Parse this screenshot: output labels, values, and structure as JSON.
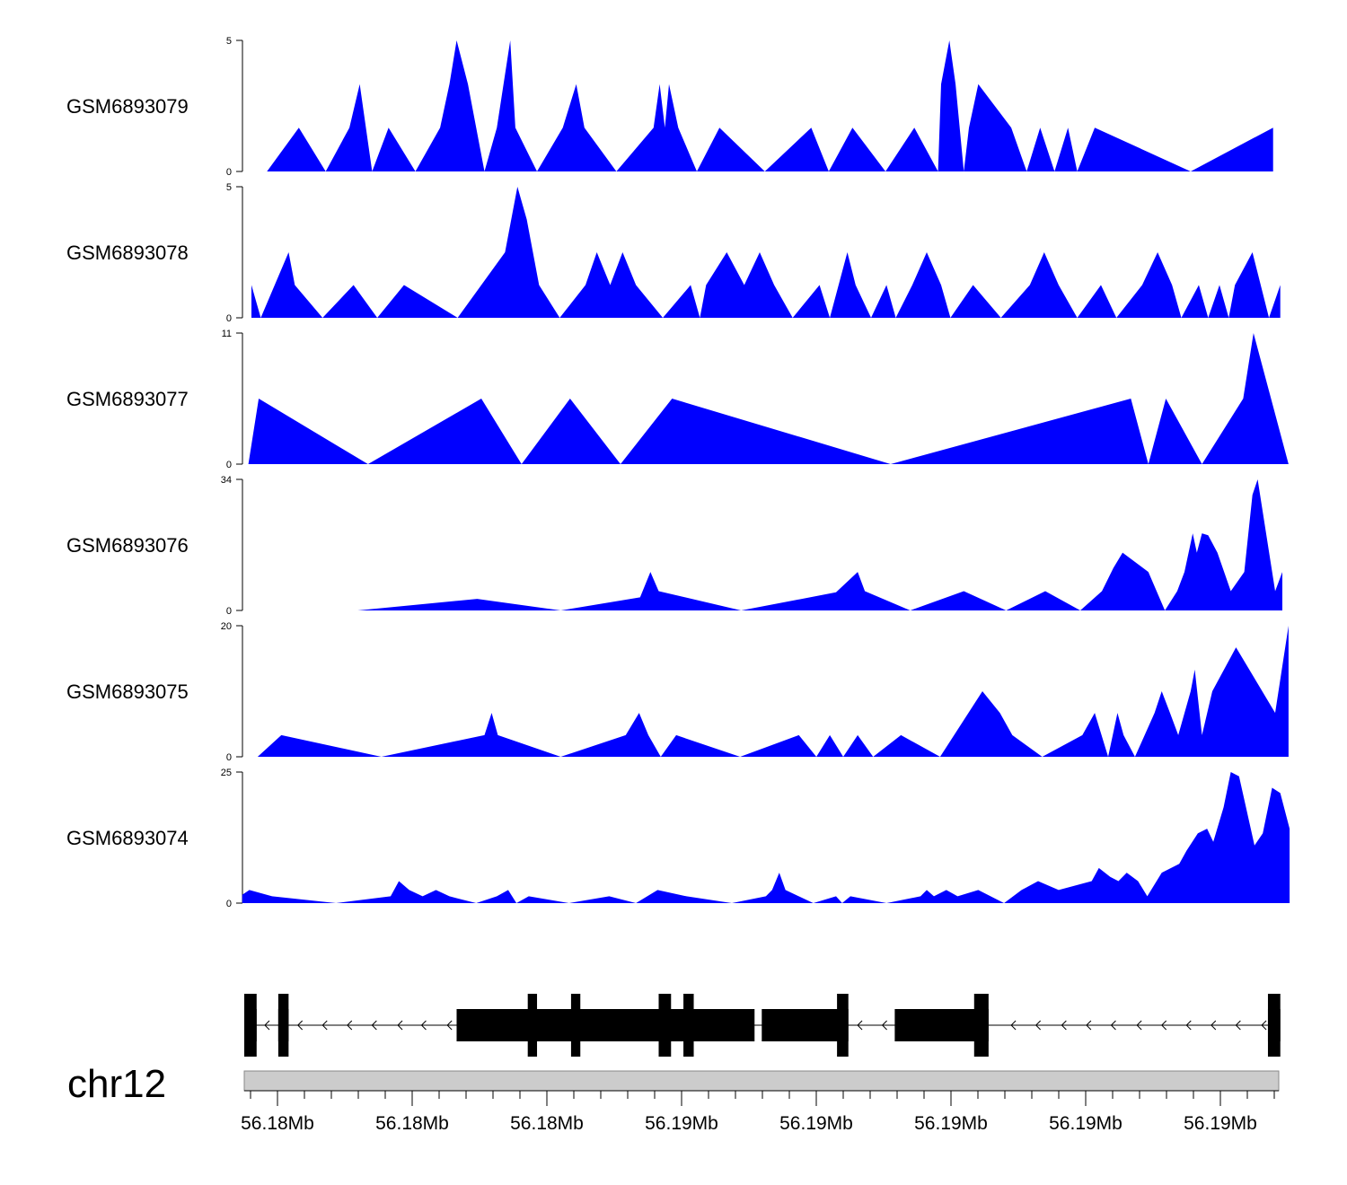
{
  "chart_data": {
    "type": "area",
    "title": "",
    "region": {
      "chromosome": "chr12",
      "coord_labels": [
        "56.18Mb",
        "56.18Mb",
        "56.18Mb",
        "56.19Mb",
        "56.19Mb",
        "56.19Mb",
        "56.19Mb",
        "56.19Mb"
      ]
    },
    "fill_color": "#0000ff",
    "gene_color": "#000000",
    "ideogram_color": "#cccccc",
    "x_range": [
      0,
      1000
    ],
    "tracks": [
      {
        "name": "GSM6893079",
        "ylim": [
          0,
          5
        ],
        "y_ticks": [
          "5",
          "0"
        ],
        "points": [
          [
            22,
            0
          ],
          [
            53,
            1.67
          ],
          [
            79,
            0
          ],
          [
            102,
            1.67
          ],
          [
            112,
            3.33
          ],
          [
            124,
            0
          ],
          [
            140,
            1.67
          ],
          [
            166,
            0
          ],
          [
            190,
            1.67
          ],
          [
            199,
            3.33
          ],
          [
            206,
            5
          ],
          [
            217,
            3.33
          ],
          [
            233,
            0
          ],
          [
            245,
            1.67
          ],
          [
            258,
            5
          ],
          [
            263,
            1.67
          ],
          [
            284,
            0
          ],
          [
            309,
            1.67
          ],
          [
            322,
            3.33
          ],
          [
            330,
            1.67
          ],
          [
            361,
            0
          ],
          [
            397,
            1.67
          ],
          [
            403,
            3.33
          ],
          [
            408,
            1.67
          ],
          [
            412,
            3.33
          ],
          [
            421,
            1.67
          ],
          [
            439,
            0
          ],
          [
            461,
            1.67
          ],
          [
            505,
            0
          ],
          [
            550,
            1.67
          ],
          [
            567,
            0
          ],
          [
            590,
            1.67
          ],
          [
            622,
            0
          ],
          [
            650,
            1.67
          ],
          [
            673,
            0
          ],
          [
            676,
            3.33
          ],
          [
            684,
            5
          ],
          [
            690,
            3.33
          ],
          [
            698,
            0
          ],
          [
            703,
            1.67
          ],
          [
            712,
            3.33
          ],
          [
            744,
            1.67
          ],
          [
            759,
            0
          ],
          [
            772,
            1.67
          ],
          [
            786,
            0
          ],
          [
            799,
            1.67
          ],
          [
            808,
            0
          ],
          [
            825,
            1.67
          ],
          [
            918,
            0
          ],
          [
            998,
            1.67
          ],
          [
            998,
            0
          ]
        ]
      },
      {
        "name": "GSM6893078",
        "ylim": [
          0,
          5
        ],
        "y_ticks": [
          "5",
          "0"
        ],
        "points": [
          [
            7,
            0
          ],
          [
            7,
            1.25
          ],
          [
            16,
            0
          ],
          [
            43,
            2.5
          ],
          [
            49,
            1.25
          ],
          [
            76,
            0
          ],
          [
            106,
            1.25
          ],
          [
            129,
            0
          ],
          [
            155,
            1.25
          ],
          [
            207,
            0
          ],
          [
            253,
            2.5
          ],
          [
            265,
            5
          ],
          [
            274,
            3.75
          ],
          [
            286,
            1.25
          ],
          [
            306,
            0
          ],
          [
            331,
            1.25
          ],
          [
            342,
            2.5
          ],
          [
            355,
            1.25
          ],
          [
            367,
            2.5
          ],
          [
            380,
            1.25
          ],
          [
            406,
            0
          ],
          [
            433,
            1.25
          ],
          [
            442,
            0
          ],
          [
            448,
            1.25
          ],
          [
            468,
            2.5
          ],
          [
            485,
            1.25
          ],
          [
            500,
            2.5
          ],
          [
            514,
            1.25
          ],
          [
            532,
            0
          ],
          [
            558,
            1.25
          ],
          [
            568,
            0
          ],
          [
            585,
            2.5
          ],
          [
            593,
            1.25
          ],
          [
            608,
            0
          ],
          [
            623,
            1.25
          ],
          [
            632,
            0
          ],
          [
            648,
            1.25
          ],
          [
            662,
            2.5
          ],
          [
            676,
            1.25
          ],
          [
            685,
            0
          ],
          [
            707,
            1.25
          ],
          [
            734,
            0
          ],
          [
            762,
            1.25
          ],
          [
            776,
            2.5
          ],
          [
            790,
            1.25
          ],
          [
            808,
            0
          ],
          [
            831,
            1.25
          ],
          [
            846,
            0
          ],
          [
            871,
            1.25
          ],
          [
            886,
            2.5
          ],
          [
            900,
            1.25
          ],
          [
            909,
            0
          ],
          [
            926,
            1.25
          ],
          [
            935,
            0
          ],
          [
            946,
            1.25
          ],
          [
            955,
            0
          ],
          [
            961,
            1.25
          ],
          [
            978,
            2.5
          ],
          [
            994,
            0
          ],
          [
            1005,
            1.25
          ],
          [
            1005,
            0
          ]
        ]
      },
      {
        "name": "GSM6893077",
        "ylim": [
          0,
          11
        ],
        "y_ticks": [
          "11",
          "0"
        ],
        "points": [
          [
            4,
            0
          ],
          [
            14,
            5.5
          ],
          [
            120,
            0
          ],
          [
            230,
            5.5
          ],
          [
            269,
            0
          ],
          [
            316,
            5.5
          ],
          [
            365,
            0
          ],
          [
            415,
            5.5
          ],
          [
            627,
            0
          ],
          [
            860,
            5.5
          ],
          [
            877,
            0
          ],
          [
            894,
            5.5
          ],
          [
            929,
            0
          ],
          [
            969,
            5.5
          ],
          [
            979,
            11
          ],
          [
            1013,
            0
          ]
        ]
      },
      {
        "name": "GSM6893076",
        "ylim": [
          0,
          34
        ],
        "y_ticks": [
          "34",
          "0"
        ],
        "points": [
          [
            110,
            0
          ],
          [
            226,
            3
          ],
          [
            307,
            0
          ],
          [
            384,
            3.4
          ],
          [
            394,
            10
          ],
          [
            402,
            5
          ],
          [
            482,
            0
          ],
          [
            574,
            4.7
          ],
          [
            595,
            10
          ],
          [
            602,
            5
          ],
          [
            646,
            0
          ],
          [
            698,
            5
          ],
          [
            739,
            0
          ],
          [
            777,
            5
          ],
          [
            811,
            0
          ],
          [
            832,
            5
          ],
          [
            843,
            11
          ],
          [
            852,
            15
          ],
          [
            877,
            10
          ],
          [
            893,
            0
          ],
          [
            905,
            5
          ],
          [
            912,
            10
          ],
          [
            920,
            20
          ],
          [
            924,
            15
          ],
          [
            929,
            20
          ],
          [
            935,
            19.5
          ],
          [
            944,
            15
          ],
          [
            957,
            5
          ],
          [
            970,
            10
          ],
          [
            978,
            30
          ],
          [
            983,
            34
          ],
          [
            1000,
            5
          ],
          [
            1007,
            10
          ],
          [
            1007,
            0
          ]
        ]
      },
      {
        "name": "GSM6893075",
        "ylim": [
          0,
          20
        ],
        "y_ticks": [
          "20",
          "0"
        ],
        "points": [
          [
            13,
            0
          ],
          [
            36,
            3.3
          ],
          [
            133,
            0
          ],
          [
            233,
            3.3
          ],
          [
            240,
            6.7
          ],
          [
            246,
            3.3
          ],
          [
            307,
            0
          ],
          [
            370,
            3.3
          ],
          [
            383,
            6.7
          ],
          [
            392,
            3.3
          ],
          [
            404,
            0
          ],
          [
            419,
            3.3
          ],
          [
            481,
            0
          ],
          [
            538,
            3.3
          ],
          [
            555,
            0
          ],
          [
            568,
            3.3
          ],
          [
            581,
            0
          ],
          [
            595,
            3.3
          ],
          [
            610,
            0
          ],
          [
            637,
            3.3
          ],
          [
            675,
            0
          ],
          [
            716,
            10
          ],
          [
            733,
            6.7
          ],
          [
            745,
            3.3
          ],
          [
            774,
            0
          ],
          [
            813,
            3.3
          ],
          [
            825,
            6.7
          ],
          [
            838,
            0
          ],
          [
            847,
            6.7
          ],
          [
            853,
            3.3
          ],
          [
            864,
            0
          ],
          [
            883,
            6.7
          ],
          [
            890,
            10
          ],
          [
            898,
            6.7
          ],
          [
            906,
            3.3
          ],
          [
            918,
            10
          ],
          [
            922,
            13.3
          ],
          [
            929,
            3.3
          ],
          [
            939,
            10
          ],
          [
            962,
            16.7
          ],
          [
            1000,
            6.7
          ],
          [
            1013,
            20
          ],
          [
            1013,
            0
          ]
        ]
      },
      {
        "name": "GSM6893074",
        "ylim": [
          0,
          25
        ],
        "y_ticks": [
          "25",
          "0"
        ],
        "points": [
          [
            -2,
            0
          ],
          [
            -2,
            1.6
          ],
          [
            5,
            2.5
          ],
          [
            27,
            1.3
          ],
          [
            89,
            0
          ],
          [
            142,
            1.3
          ],
          [
            150,
            4.2
          ],
          [
            160,
            2.5
          ],
          [
            173,
            1.3
          ],
          [
            186,
            2.5
          ],
          [
            199,
            1.3
          ],
          [
            225,
            0
          ],
          [
            245,
            1.3
          ],
          [
            256,
            2.5
          ],
          [
            264,
            0
          ],
          [
            276,
            1.3
          ],
          [
            315,
            0
          ],
          [
            354,
            1.3
          ],
          [
            380,
            0
          ],
          [
            401,
            2.5
          ],
          [
            429,
            1.3
          ],
          [
            473,
            0
          ],
          [
            506,
            1.3
          ],
          [
            512,
            2.5
          ],
          [
            519,
            5.8
          ],
          [
            525,
            2.5
          ],
          [
            552,
            0
          ],
          [
            574,
            1.3
          ],
          [
            580,
            0
          ],
          [
            588,
            1.3
          ],
          [
            623,
            0
          ],
          [
            656,
            1.3
          ],
          [
            662,
            2.5
          ],
          [
            669,
            1.3
          ],
          [
            681,
            2.5
          ],
          [
            692,
            1.3
          ],
          [
            712,
            2.5
          ],
          [
            737,
            0
          ],
          [
            754,
            2.5
          ],
          [
            770,
            4.2
          ],
          [
            790,
            2.5
          ],
          [
            822,
            4.2
          ],
          [
            829,
            6.7
          ],
          [
            840,
            5
          ],
          [
            848,
            4.2
          ],
          [
            856,
            5.8
          ],
          [
            867,
            4.2
          ],
          [
            876,
            1.3
          ],
          [
            890,
            5.8
          ],
          [
            907,
            7.5
          ],
          [
            914,
            10
          ],
          [
            925,
            13.3
          ],
          [
            934,
            14.2
          ],
          [
            940,
            11.7
          ],
          [
            950,
            18.3
          ],
          [
            957,
            25
          ],
          [
            965,
            24.2
          ],
          [
            980,
            11
          ],
          [
            988,
            13.3
          ],
          [
            997,
            22
          ],
          [
            1005,
            21
          ],
          [
            1014,
            14.2
          ],
          [
            1014,
            0
          ]
        ]
      }
    ],
    "gene_model": {
      "strand": "-",
      "line_range": [
        0,
        1000
      ],
      "arrows_x": [
        20,
        52,
        76,
        100,
        124,
        149,
        172,
        197,
        595,
        619,
        744,
        768,
        793,
        817,
        841,
        866,
        890,
        914,
        938,
        962,
        987
      ],
      "utr_blocks": [
        [
          40,
          50
        ]
      ],
      "exons": [
        [
          0,
          12
        ],
        [
          33,
          43
        ],
        [
          206,
          495
        ],
        [
          275,
          284
        ],
        [
          317,
          326
        ],
        [
          402,
          414
        ],
        [
          426,
          436
        ],
        [
          502,
          585
        ],
        [
          575,
          586
        ],
        [
          631,
          714
        ],
        [
          708,
          722
        ],
        [
          993,
          1005
        ]
      ],
      "tall_exons": [
        [
          0,
          12
        ],
        [
          33,
          43
        ],
        [
          275,
          284
        ],
        [
          317,
          326
        ],
        [
          402,
          414
        ],
        [
          426,
          436
        ],
        [
          575,
          586
        ],
        [
          708,
          722
        ],
        [
          993,
          1005
        ]
      ]
    }
  }
}
